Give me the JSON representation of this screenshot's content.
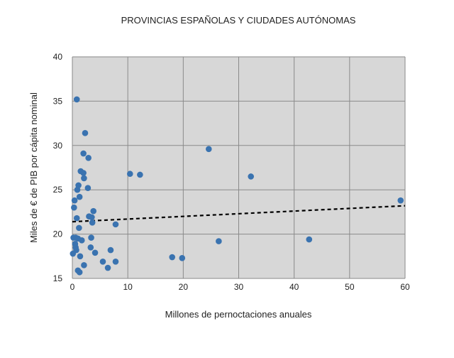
{
  "chart_data": {
    "type": "scatter",
    "title": "PROVINCIAS ESPAÑOLAS Y CIUDADES AUTÓNOMAS",
    "xlabel": "Millones de pernoctaciones anuales",
    "ylabel": "Miles de € de PIB por cápita nominal",
    "xlim": [
      0,
      60
    ],
    "ylim": [
      15,
      40
    ],
    "x_ticks": [
      0,
      10,
      20,
      30,
      40,
      50,
      60
    ],
    "y_ticks": [
      15,
      20,
      25,
      30,
      35,
      40
    ],
    "grid": true,
    "legend": "none",
    "colors": {
      "points": "#3a73b0",
      "plot_background": "#d7d7d7",
      "grid": "#8a8a8a",
      "trendline": "#000000"
    },
    "trendline": {
      "style": "dashed",
      "start": [
        0,
        21.4
      ],
      "end": [
        60,
        23.2
      ]
    },
    "points": [
      {
        "x": 0.8,
        "y": 35.2
      },
      {
        "x": 2.3,
        "y": 31.4
      },
      {
        "x": 2.0,
        "y": 29.1
      },
      {
        "x": 2.9,
        "y": 28.6
      },
      {
        "x": 1.5,
        "y": 27.1
      },
      {
        "x": 2.0,
        "y": 26.9
      },
      {
        "x": 2.1,
        "y": 26.3
      },
      {
        "x": 10.4,
        "y": 26.8
      },
      {
        "x": 12.2,
        "y": 26.7
      },
      {
        "x": 24.6,
        "y": 29.6
      },
      {
        "x": 32.2,
        "y": 26.5
      },
      {
        "x": 0.9,
        "y": 25.0
      },
      {
        "x": 1.1,
        "y": 25.5
      },
      {
        "x": 2.8,
        "y": 25.2
      },
      {
        "x": 1.3,
        "y": 24.2
      },
      {
        "x": 0.4,
        "y": 23.8
      },
      {
        "x": 0.3,
        "y": 23.0
      },
      {
        "x": 3.8,
        "y": 22.6
      },
      {
        "x": 3.0,
        "y": 22.0
      },
      {
        "x": 3.5,
        "y": 21.9
      },
      {
        "x": 0.8,
        "y": 21.8
      },
      {
        "x": 3.6,
        "y": 21.3
      },
      {
        "x": 7.8,
        "y": 21.1
      },
      {
        "x": 1.2,
        "y": 20.7
      },
      {
        "x": 0.2,
        "y": 19.6
      },
      {
        "x": 0.6,
        "y": 19.6
      },
      {
        "x": 1.0,
        "y": 19.5
      },
      {
        "x": 1.7,
        "y": 19.3
      },
      {
        "x": 3.4,
        "y": 19.6
      },
      {
        "x": 26.4,
        "y": 19.2
      },
      {
        "x": 42.7,
        "y": 19.4
      },
      {
        "x": 0.5,
        "y": 18.9
      },
      {
        "x": 0.6,
        "y": 18.5
      },
      {
        "x": 0.7,
        "y": 18.2
      },
      {
        "x": 0.1,
        "y": 17.8
      },
      {
        "x": 3.3,
        "y": 18.5
      },
      {
        "x": 6.9,
        "y": 18.2
      },
      {
        "x": 4.1,
        "y": 17.9
      },
      {
        "x": 1.4,
        "y": 17.5
      },
      {
        "x": 18.0,
        "y": 17.4
      },
      {
        "x": 19.8,
        "y": 17.3
      },
      {
        "x": 5.5,
        "y": 16.9
      },
      {
        "x": 7.8,
        "y": 16.9
      },
      {
        "x": 2.1,
        "y": 16.5
      },
      {
        "x": 6.4,
        "y": 16.2
      },
      {
        "x": 1.0,
        "y": 15.9
      },
      {
        "x": 1.3,
        "y": 15.7
      },
      {
        "x": 59.2,
        "y": 23.8
      }
    ]
  }
}
